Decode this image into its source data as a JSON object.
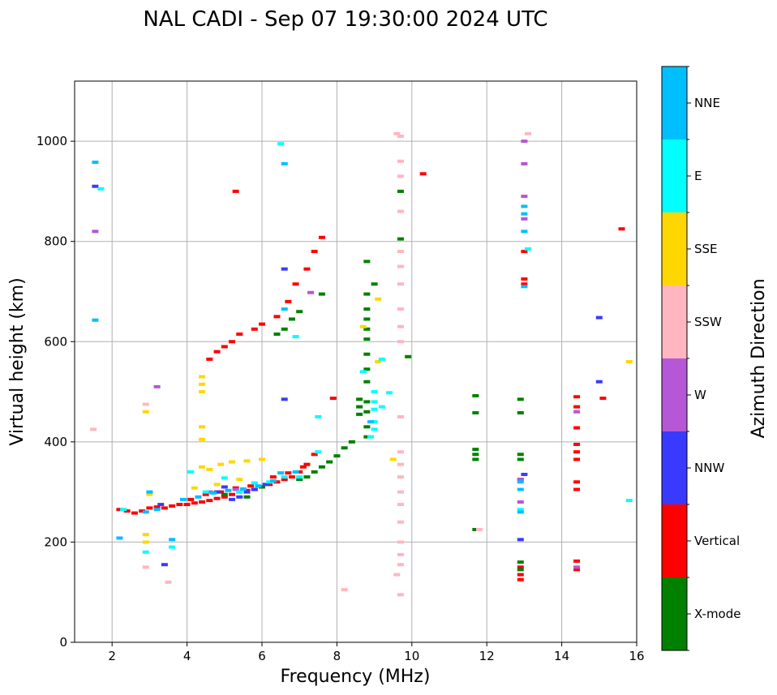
{
  "chart_data": {
    "type": "scatter",
    "title": "NAL CADI - Sep 07 19:30:00 2024 UTC",
    "xlabel": "Frequency (MHz)",
    "ylabel": "Virtual height (km)",
    "xlim": [
      1,
      16
    ],
    "ylim": [
      0,
      1120
    ],
    "xticks": [
      2,
      4,
      6,
      8,
      10,
      12,
      14,
      16
    ],
    "yticks": [
      0,
      200,
      400,
      600,
      800,
      1000
    ],
    "grid": true,
    "colorbar": {
      "label": "Azimuth Direction",
      "categories": [
        {
          "name": "X-mode",
          "color": "#008000"
        },
        {
          "name": "Vertical",
          "color": "#ff0000"
        },
        {
          "name": "NNW",
          "color": "#3a3aff"
        },
        {
          "name": "W",
          "color": "#b557d6"
        },
        {
          "name": "SSW",
          "color": "#ffb6c1"
        },
        {
          "name": "SSE",
          "color": "#ffd700"
        },
        {
          "name": "E",
          "color": "#00ffff"
        },
        {
          "name": "NNE",
          "color": "#00bfff"
        }
      ]
    },
    "series": [
      {
        "name": "Vertical",
        "color": "#ff0000",
        "points": [
          [
            2.2,
            265
          ],
          [
            2.4,
            262
          ],
          [
            2.6,
            258
          ],
          [
            2.8,
            262
          ],
          [
            3.0,
            268
          ],
          [
            3.2,
            270
          ],
          [
            3.4,
            268
          ],
          [
            3.6,
            272
          ],
          [
            3.8,
            275
          ],
          [
            4.0,
            275
          ],
          [
            4.2,
            278
          ],
          [
            4.4,
            280
          ],
          [
            4.6,
            283
          ],
          [
            4.8,
            287
          ],
          [
            5.0,
            290
          ],
          [
            5.2,
            295
          ],
          [
            5.4,
            300
          ],
          [
            5.6,
            303
          ],
          [
            5.8,
            305
          ],
          [
            6.0,
            310
          ],
          [
            6.2,
            315
          ],
          [
            6.4,
            320
          ],
          [
            6.6,
            325
          ],
          [
            6.8,
            330
          ],
          [
            7.0,
            340
          ],
          [
            7.2,
            355
          ],
          [
            7.4,
            375
          ],
          [
            4.1,
            285
          ],
          [
            4.5,
            295
          ],
          [
            4.9,
            300
          ],
          [
            5.3,
            308
          ],
          [
            5.7,
            312
          ],
          [
            6.3,
            330
          ],
          [
            6.7,
            338
          ],
          [
            7.1,
            350
          ],
          [
            4.6,
            565
          ],
          [
            4.8,
            580
          ],
          [
            5.0,
            590
          ],
          [
            5.2,
            600
          ],
          [
            5.4,
            615
          ],
          [
            5.8,
            625
          ],
          [
            6.0,
            635
          ],
          [
            6.4,
            650
          ],
          [
            6.7,
            680
          ],
          [
            6.9,
            715
          ],
          [
            7.2,
            745
          ],
          [
            7.4,
            780
          ],
          [
            7.6,
            808
          ],
          [
            5.3,
            900
          ],
          [
            7.9,
            487
          ],
          [
            10.3,
            935
          ],
          [
            13.0,
            725
          ],
          [
            13.0,
            715
          ],
          [
            13.0,
            780
          ],
          [
            12.9,
            135
          ],
          [
            12.9,
            125
          ],
          [
            12.9,
            150
          ],
          [
            14.4,
            490
          ],
          [
            14.4,
            470
          ],
          [
            14.4,
            428
          ],
          [
            14.4,
            395
          ],
          [
            14.4,
            380
          ],
          [
            14.4,
            365
          ],
          [
            14.4,
            320
          ],
          [
            14.4,
            305
          ],
          [
            14.4,
            162
          ],
          [
            14.4,
            145
          ],
          [
            15.1,
            487
          ],
          [
            15.6,
            825
          ]
        ]
      },
      {
        "name": "X-mode",
        "color": "#008000",
        "points": [
          [
            7.0,
            325
          ],
          [
            7.2,
            330
          ],
          [
            7.4,
            340
          ],
          [
            7.6,
            350
          ],
          [
            7.8,
            360
          ],
          [
            8.0,
            372
          ],
          [
            8.2,
            388
          ],
          [
            8.4,
            400
          ],
          [
            8.6,
            455
          ],
          [
            8.6,
            470
          ],
          [
            8.6,
            485
          ],
          [
            8.8,
            410
          ],
          [
            8.8,
            430
          ],
          [
            8.8,
            460
          ],
          [
            8.8,
            480
          ],
          [
            8.8,
            520
          ],
          [
            8.8,
            545
          ],
          [
            8.8,
            575
          ],
          [
            8.8,
            605
          ],
          [
            8.8,
            625
          ],
          [
            8.8,
            645
          ],
          [
            8.8,
            665
          ],
          [
            8.8,
            695
          ],
          [
            8.8,
            760
          ],
          [
            9.0,
            715
          ],
          [
            6.4,
            615
          ],
          [
            6.6,
            625
          ],
          [
            6.8,
            645
          ],
          [
            7.0,
            660
          ],
          [
            7.6,
            695
          ],
          [
            5.0,
            295
          ],
          [
            5.6,
            290
          ],
          [
            6.0,
            310
          ],
          [
            9.7,
            900
          ],
          [
            9.7,
            805
          ],
          [
            9.9,
            570
          ],
          [
            11.7,
            492
          ],
          [
            11.7,
            458
          ],
          [
            11.7,
            385
          ],
          [
            11.7,
            375
          ],
          [
            11.7,
            365
          ],
          [
            11.7,
            225
          ],
          [
            12.9,
            458
          ],
          [
            12.9,
            485
          ],
          [
            12.9,
            375
          ],
          [
            12.9,
            365
          ],
          [
            12.9,
            160
          ],
          [
            12.9,
            145
          ]
        ]
      },
      {
        "name": "NNW",
        "color": "#3a3aff",
        "points": [
          [
            1.55,
            910
          ],
          [
            3.3,
            275
          ],
          [
            4.8,
            300
          ],
          [
            5.0,
            310
          ],
          [
            5.2,
            285
          ],
          [
            5.4,
            290
          ],
          [
            5.6,
            300
          ],
          [
            5.8,
            305
          ],
          [
            6.1,
            315
          ],
          [
            6.6,
            485
          ],
          [
            6.6,
            745
          ],
          [
            3.4,
            155
          ],
          [
            12.9,
            205
          ],
          [
            12.9,
            325
          ],
          [
            13.0,
            335
          ],
          [
            15.0,
            520
          ],
          [
            15.0,
            648
          ]
        ]
      },
      {
        "name": "W",
        "color": "#b557d6",
        "points": [
          [
            1.55,
            820
          ],
          [
            3.2,
            510
          ],
          [
            4.6,
            300
          ],
          [
            5.3,
            305
          ],
          [
            7.3,
            698
          ],
          [
            12.9,
            325
          ],
          [
            12.9,
            280
          ],
          [
            13.0,
            890
          ],
          [
            13.0,
            845
          ],
          [
            13.0,
            955
          ],
          [
            13.0,
            1000
          ],
          [
            14.4,
            460
          ],
          [
            14.4,
            150
          ]
        ]
      },
      {
        "name": "SSW",
        "color": "#ffb6c1",
        "points": [
          [
            1.5,
            425
          ],
          [
            2.9,
            150
          ],
          [
            2.9,
            475
          ],
          [
            3.5,
            120
          ],
          [
            9.6,
            1015
          ],
          [
            9.7,
            1010
          ],
          [
            9.7,
            960
          ],
          [
            9.7,
            930
          ],
          [
            9.7,
            860
          ],
          [
            9.7,
            780
          ],
          [
            9.7,
            750
          ],
          [
            9.7,
            715
          ],
          [
            9.7,
            665
          ],
          [
            9.7,
            630
          ],
          [
            9.7,
            600
          ],
          [
            9.7,
            450
          ],
          [
            9.7,
            380
          ],
          [
            9.7,
            355
          ],
          [
            9.7,
            330
          ],
          [
            9.7,
            300
          ],
          [
            9.7,
            275
          ],
          [
            9.7,
            240
          ],
          [
            9.7,
            200
          ],
          [
            9.7,
            175
          ],
          [
            9.7,
            155
          ],
          [
            9.7,
            95
          ],
          [
            9.6,
            135
          ],
          [
            8.2,
            105
          ],
          [
            11.8,
            225
          ],
          [
            13.1,
            1015
          ]
        ]
      },
      {
        "name": "SSE",
        "color": "#ffd700",
        "points": [
          [
            2.9,
            460
          ],
          [
            2.9,
            215
          ],
          [
            2.9,
            200
          ],
          [
            3.0,
            295
          ],
          [
            4.4,
            530
          ],
          [
            4.4,
            515
          ],
          [
            4.4,
            500
          ],
          [
            4.4,
            430
          ],
          [
            4.4,
            405
          ],
          [
            4.4,
            350
          ],
          [
            4.6,
            345
          ],
          [
            4.9,
            355
          ],
          [
            5.2,
            360
          ],
          [
            5.6,
            362
          ],
          [
            6.0,
            365
          ],
          [
            4.2,
            308
          ],
          [
            4.8,
            315
          ],
          [
            5.4,
            325
          ],
          [
            8.7,
            630
          ],
          [
            9.1,
            685
          ],
          [
            9.1,
            560
          ],
          [
            9.5,
            365
          ],
          [
            15.8,
            560
          ]
        ]
      },
      {
        "name": "E",
        "color": "#00ffff",
        "points": [
          [
            1.7,
            905
          ],
          [
            2.3,
            265
          ],
          [
            2.9,
            180
          ],
          [
            3.6,
            190
          ],
          [
            4.1,
            340
          ],
          [
            4.5,
            300
          ],
          [
            5.0,
            328
          ],
          [
            5.4,
            300
          ],
          [
            5.8,
            318
          ],
          [
            6.2,
            320
          ],
          [
            6.6,
            330
          ],
          [
            7.0,
            330
          ],
          [
            7.5,
            380
          ],
          [
            7.5,
            450
          ],
          [
            6.5,
            995
          ],
          [
            6.9,
            610
          ],
          [
            8.7,
            540
          ],
          [
            8.9,
            410
          ],
          [
            9.0,
            425
          ],
          [
            9.0,
            440
          ],
          [
            9.0,
            465
          ],
          [
            9.0,
            480
          ],
          [
            9.0,
            500
          ],
          [
            9.2,
            565
          ],
          [
            9.2,
            470
          ],
          [
            9.4,
            498
          ],
          [
            13.1,
            785
          ],
          [
            12.9,
            265
          ],
          [
            15.8,
            283
          ]
        ]
      },
      {
        "name": "NNE",
        "color": "#00bfff",
        "points": [
          [
            1.55,
            958
          ],
          [
            1.55,
            643
          ],
          [
            2.2,
            208
          ],
          [
            2.9,
            260
          ],
          [
            3.0,
            300
          ],
          [
            3.2,
            265
          ],
          [
            3.6,
            205
          ],
          [
            3.9,
            285
          ],
          [
            4.3,
            290
          ],
          [
            4.7,
            298
          ],
          [
            5.1,
            303
          ],
          [
            5.5,
            306
          ],
          [
            5.9,
            312
          ],
          [
            6.3,
            322
          ],
          [
            6.5,
            338
          ],
          [
            6.9,
            340
          ],
          [
            6.6,
            955
          ],
          [
            6.6,
            665
          ],
          [
            8.9,
            440
          ],
          [
            12.9,
            260
          ],
          [
            12.9,
            305
          ],
          [
            12.9,
            320
          ],
          [
            13.0,
            820
          ],
          [
            13.0,
            855
          ],
          [
            13.0,
            870
          ],
          [
            13.0,
            710
          ]
        ]
      }
    ]
  }
}
